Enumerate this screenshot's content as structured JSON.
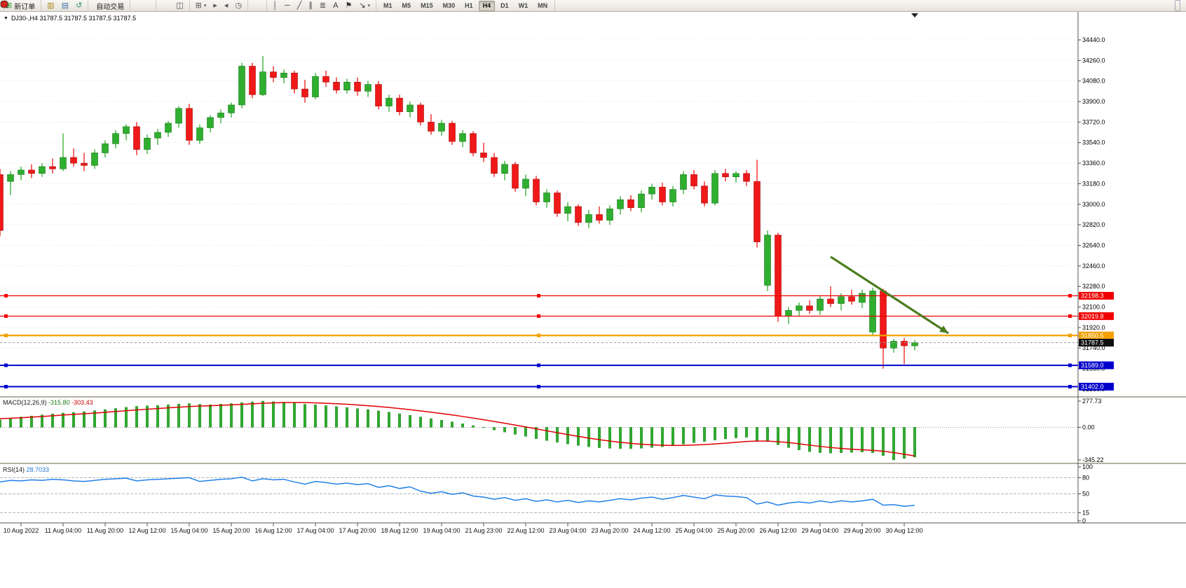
{
  "window": {
    "symbol_title": "DJ30-,H4 31787.5 31787.5 31787.5 31787.5",
    "dropdown_glyph": "▼"
  },
  "toolbar": {
    "groups": [
      {
        "name": "orders",
        "items": [
          {
            "name": "new-order-button",
            "glyph": "⊞",
            "color": "#2f9e2f",
            "label": "新订单"
          }
        ]
      },
      {
        "name": "panels",
        "items": [
          {
            "name": "market-watch-button",
            "glyph": "▥",
            "color": "#b08820"
          },
          {
            "name": "data-window-button",
            "glyph": "▤",
            "color": "#4878b0"
          },
          {
            "name": "navigator-button",
            "glyph": "↺",
            "color": "#2e8b57"
          }
        ]
      },
      {
        "name": "trading",
        "items": [
          {
            "name": "auto-trading-button",
            "shape": "reddot",
            "label": "自动交易"
          }
        ]
      },
      {
        "name": "chart-type",
        "items": [
          {
            "name": "bar-chart-button",
            "shape": "bars"
          },
          {
            "name": "candlestick-chart-button",
            "shape": "candle"
          },
          {
            "name": "line-chart-button",
            "shape": "linechart"
          }
        ]
      },
      {
        "name": "zoom",
        "items": [
          {
            "name": "zoom-in-button",
            "shape": "zoomin"
          },
          {
            "name": "zoom-out-button",
            "shape": "zoomout"
          },
          {
            "name": "tile-windows-button",
            "glyph": "◫",
            "color": "#555555"
          }
        ]
      },
      {
        "name": "windows",
        "items": [
          {
            "name": "new-chart-button",
            "glyph": "⊞",
            "color": "#555555",
            "caret": "▾"
          },
          {
            "name": "auto-scroll-button",
            "glyph": "▸",
            "color": "#555555"
          },
          {
            "name": "chart-shift-button",
            "glyph": "◂",
            "color": "#555555"
          },
          {
            "name": "clock-button",
            "glyph": "◷",
            "color": "#555555"
          }
        ]
      },
      {
        "name": "pointer",
        "items": [
          {
            "name": "cursor-button",
            "shape": "cursor"
          },
          {
            "name": "crosshair-button",
            "shape": "cross"
          }
        ]
      },
      {
        "name": "objects",
        "items": [
          {
            "name": "vertical-line-button",
            "glyph": "│",
            "color": "#444444"
          },
          {
            "name": "horizontal-line-button",
            "glyph": "─",
            "color": "#444444"
          },
          {
            "name": "trendline-button",
            "glyph": "╱",
            "color": "#444444"
          },
          {
            "name": "channel-button",
            "glyph": "∥",
            "color": "#444444"
          },
          {
            "name": "fibonacci-button",
            "glyph": "≣",
            "color": "#444444"
          },
          {
            "name": "text-button",
            "glyph": "A",
            "color": "#333333"
          },
          {
            "name": "label-button",
            "glyph": "⚑",
            "color": "#333333"
          },
          {
            "name": "arrows-button",
            "glyph": "↘",
            "color": "#333333",
            "caret": "▾"
          }
        ]
      }
    ],
    "timeframes": [
      "M1",
      "M5",
      "M15",
      "M30",
      "H1",
      "H4",
      "D1",
      "W1",
      "MN"
    ],
    "active_timeframe": "H4",
    "right_items": [
      {
        "name": "wrench-button",
        "shape": "gear"
      },
      {
        "name": "notifications-button",
        "shape": "reddot"
      }
    ]
  },
  "chart_data": {
    "type": "candlestick",
    "symbol": "DJ30-",
    "period": "H4",
    "title": "DJ30-,H4 31787.5 31787.5 31787.5 31787.5",
    "colors": {
      "up": "#2fae2f",
      "down": "#f01818",
      "macd_histogram": "#2fae2f",
      "macd_signal": "#e00000",
      "rsi": "#2080e8",
      "grid": "#dcdcdc",
      "arrow": "#4a7d1e",
      "current_price_bg": "#101010"
    },
    "price_axis": {
      "max": 34440.0,
      "min": 31380.0,
      "step": 180.0
    },
    "price_ticks": [
      "34440.0",
      "34260.0",
      "34080.0",
      "33900.0",
      "33720.0",
      "33540.0",
      "33360.0",
      "33180.0",
      "33000.0",
      "32820.0",
      "32640.0",
      "32460.0",
      "32280.0",
      "32100.0",
      "31920.0",
      "31740.0",
      "31560.0",
      "31380.0"
    ],
    "time_labels": [
      "10 Aug 2022",
      "11 Aug 04:00",
      "11 Aug 20:00",
      "12 Aug 12:00",
      "15 Aug 04:00",
      "15 Aug 20:00",
      "16 Aug 12:00",
      "17 Aug 04:00",
      "17 Aug 20:00",
      "18 Aug 12:00",
      "19 Aug 04:00",
      "21 Aug 23:00",
      "22 Aug 12:00",
      "23 Aug 04:00",
      "23 Aug 20:00",
      "24 Aug 12:00",
      "25 Aug 04:00",
      "25 Aug 20:00",
      "26 Aug 12:00",
      "29 Aug 04:00",
      "29 Aug 20:00",
      "30 Aug 12:00"
    ],
    "label_start_index": 2,
    "label_step": 4,
    "candles": [
      [
        33260,
        33310,
        32720,
        32770
      ],
      [
        33200,
        33290,
        33080,
        33260
      ],
      [
        33260,
        33330,
        33210,
        33300
      ],
      [
        33300,
        33350,
        33230,
        33270
      ],
      [
        33270,
        33360,
        33240,
        33330
      ],
      [
        33330,
        33400,
        33270,
        33310
      ],
      [
        33310,
        33620,
        33290,
        33410
      ],
      [
        33410,
        33490,
        33330,
        33360
      ],
      [
        33360,
        33450,
        33290,
        33340
      ],
      [
        33340,
        33480,
        33310,
        33450
      ],
      [
        33450,
        33560,
        33410,
        33530
      ],
      [
        33530,
        33650,
        33490,
        33620
      ],
      [
        33620,
        33700,
        33560,
        33680
      ],
      [
        33680,
        33720,
        33430,
        33480
      ],
      [
        33480,
        33610,
        33440,
        33580
      ],
      [
        33580,
        33660,
        33520,
        33630
      ],
      [
        33630,
        33730,
        33590,
        33710
      ],
      [
        33710,
        33860,
        33670,
        33840
      ],
      [
        33840,
        33880,
        33520,
        33560
      ],
      [
        33560,
        33700,
        33530,
        33670
      ],
      [
        33670,
        33780,
        33630,
        33760
      ],
      [
        33760,
        33830,
        33710,
        33800
      ],
      [
        33800,
        33890,
        33760,
        33870
      ],
      [
        33870,
        34240,
        33840,
        34210
      ],
      [
        34210,
        34240,
        33930,
        33960
      ],
      [
        33960,
        34300,
        33950,
        34160
      ],
      [
        34160,
        34210,
        34070,
        34110
      ],
      [
        34110,
        34180,
        34060,
        34150
      ],
      [
        34150,
        34170,
        33970,
        34010
      ],
      [
        34010,
        34090,
        33890,
        33940
      ],
      [
        33940,
        34150,
        33920,
        34120
      ],
      [
        34120,
        34170,
        34030,
        34070
      ],
      [
        34070,
        34110,
        33970,
        34000
      ],
      [
        34000,
        34100,
        33970,
        34070
      ],
      [
        34070,
        34110,
        33950,
        33990
      ],
      [
        33990,
        34080,
        33940,
        34050
      ],
      [
        34050,
        34080,
        33830,
        33860
      ],
      [
        33860,
        33960,
        33810,
        33930
      ],
      [
        33930,
        33960,
        33780,
        33810
      ],
      [
        33810,
        33900,
        33760,
        33870
      ],
      [
        33870,
        33890,
        33690,
        33720
      ],
      [
        33720,
        33790,
        33610,
        33640
      ],
      [
        33640,
        33740,
        33600,
        33710
      ],
      [
        33710,
        33730,
        33520,
        33550
      ],
      [
        33550,
        33650,
        33500,
        33620
      ],
      [
        33620,
        33640,
        33420,
        33450
      ],
      [
        33450,
        33540,
        33370,
        33410
      ],
      [
        33410,
        33450,
        33240,
        33270
      ],
      [
        33270,
        33380,
        33210,
        33350
      ],
      [
        33350,
        33370,
        33110,
        33140
      ],
      [
        33140,
        33260,
        33070,
        33220
      ],
      [
        33220,
        33250,
        32990,
        33020
      ],
      [
        33020,
        33130,
        32970,
        33100
      ],
      [
        33100,
        33120,
        32890,
        32920
      ],
      [
        32920,
        33020,
        32850,
        32980
      ],
      [
        32980,
        33000,
        32810,
        32840
      ],
      [
        32840,
        32950,
        32790,
        32910
      ],
      [
        32910,
        32980,
        32830,
        32860
      ],
      [
        32860,
        32990,
        32820,
        32960
      ],
      [
        32960,
        33070,
        32910,
        33040
      ],
      [
        33040,
        33080,
        32940,
        32970
      ],
      [
        32970,
        33120,
        32930,
        33090
      ],
      [
        33090,
        33180,
        33040,
        33150
      ],
      [
        33150,
        33190,
        32990,
        33020
      ],
      [
        33020,
        33160,
        32980,
        33130
      ],
      [
        33130,
        33290,
        33090,
        33260
      ],
      [
        33260,
        33300,
        33130,
        33160
      ],
      [
        33160,
        33200,
        32980,
        33010
      ],
      [
        33010,
        33300,
        32990,
        33270
      ],
      [
        33270,
        33310,
        33200,
        33240
      ],
      [
        33240,
        33290,
        33190,
        33270
      ],
      [
        33270,
        33300,
        33160,
        33200
      ],
      [
        33200,
        33390,
        32620,
        32670
      ],
      [
        32290,
        32770,
        32240,
        32730
      ],
      [
        32730,
        32750,
        31970,
        32020
      ],
      [
        32020,
        32100,
        31950,
        32070
      ],
      [
        32070,
        32140,
        32020,
        32110
      ],
      [
        32110,
        32160,
        32040,
        32070
      ],
      [
        32070,
        32200,
        32030,
        32170
      ],
      [
        32170,
        32280,
        32100,
        32130
      ],
      [
        32130,
        32220,
        32070,
        32190
      ],
      [
        32190,
        32250,
        32120,
        32150
      ],
      [
        32140,
        32250,
        32090,
        32220
      ],
      [
        31880,
        32270,
        31850,
        32240
      ],
      [
        32240,
        32260,
        31560,
        31740
      ],
      [
        31740,
        31820,
        31700,
        31800
      ],
      [
        31800,
        31830,
        31600,
        31760
      ],
      [
        31760,
        31810,
        31720,
        31787.5
      ]
    ],
    "hlines": [
      {
        "price": 32198.3,
        "label": "32198.3",
        "color": "#f00000",
        "width": 1.3
      },
      {
        "price": 32019.8,
        "label": "32019.8",
        "color": "#f00000",
        "width": 1.3
      },
      {
        "price": 31850.5,
        "label": "31850.5",
        "color": "#f5a000",
        "width": 2.2
      },
      {
        "price": 31589.0,
        "label": "31589.0",
        "color": "#0000cc",
        "width": 2.0
      },
      {
        "price": 31402.0,
        "label": "31402.0",
        "color": "#0000cc",
        "width": 2.0
      }
    ],
    "current_price": {
      "value": 31787.5,
      "label": "31787.5"
    },
    "arrow": {
      "from_index": 79,
      "from_price": 32540,
      "to_index": 90.2,
      "to_price": 31870
    },
    "macd": {
      "label": "MACD(12,26,9)",
      "main_text": "-315.80",
      "signal_text": "-303.43",
      "main_value": -315.8,
      "signal_value": -303.43,
      "axis_labels": [
        "277.73",
        "0.00",
        "-345.22"
      ],
      "axis_values": [
        277.73,
        0.0,
        -345.22
      ],
      "histogram": [
        80,
        95,
        110,
        120,
        132,
        142,
        152,
        158,
        166,
        176,
        188,
        200,
        212,
        222,
        228,
        232,
        238,
        246,
        252,
        244,
        240,
        246,
        252,
        262,
        270,
        277.73,
        272,
        266,
        256,
        244,
        238,
        230,
        220,
        210,
        198,
        188,
        174,
        160,
        144,
        128,
        110,
        92,
        76,
        58,
        38,
        18,
        -4,
        -28,
        -50,
        -74,
        -96,
        -120,
        -140,
        -158,
        -176,
        -192,
        -206,
        -216,
        -222,
        -226,
        -226,
        -222,
        -214,
        -206,
        -194,
        -178,
        -162,
        -150,
        -134,
        -122,
        -112,
        -106,
        -140,
        -150,
        -185,
        -215,
        -240,
        -258,
        -268,
        -272,
        -270,
        -266,
        -262,
        -270,
        -300,
        -345.22,
        -330,
        -315.8
      ],
      "signal": [
        92,
        96,
        102,
        108,
        115,
        122,
        130,
        137,
        144,
        151,
        159,
        167,
        176,
        184,
        192,
        199,
        206,
        213,
        220,
        225,
        229,
        233,
        238,
        243,
        249,
        255,
        259,
        262,
        263,
        262,
        259,
        255,
        250,
        244,
        237,
        229,
        220,
        210,
        199,
        187,
        174,
        160,
        146,
        131,
        115,
        98,
        80,
        62,
        43,
        24,
        4,
        -16,
        -37,
        -57,
        -77,
        -96,
        -114,
        -131,
        -146,
        -159,
        -170,
        -179,
        -186,
        -190,
        -192,
        -191,
        -188,
        -183,
        -176,
        -168,
        -159,
        -150,
        -146,
        -146,
        -152,
        -162,
        -175,
        -189,
        -202,
        -214,
        -224,
        -232,
        -238,
        -244,
        -253,
        -268,
        -285,
        -303.43
      ]
    },
    "rsi": {
      "label": "RSI(14)",
      "value_text": "28.7033",
      "value": 28.7033,
      "levels": [
        80,
        50,
        15
      ],
      "axis_labels": [
        "100",
        "80",
        "50",
        "15",
        "0"
      ],
      "axis_values": [
        100,
        80,
        50,
        15,
        0
      ],
      "series": [
        72,
        75,
        74,
        76,
        75,
        77,
        76,
        74,
        73,
        75,
        77,
        78,
        79,
        74,
        76,
        77,
        78,
        79,
        80,
        73,
        75,
        77,
        78,
        81,
        74,
        78,
        76,
        77,
        72,
        68,
        73,
        71,
        68,
        70,
        67,
        69,
        62,
        65,
        60,
        63,
        55,
        51,
        54,
        49,
        52,
        46,
        44,
        40,
        43,
        38,
        41,
        36,
        39,
        35,
        38,
        34,
        37,
        35,
        38,
        41,
        39,
        42,
        44,
        40,
        43,
        47,
        44,
        41,
        48,
        46,
        45,
        43,
        31,
        35,
        29,
        33,
        35,
        33,
        37,
        34,
        37,
        35,
        37,
        40,
        29,
        30,
        27,
        28.7
      ]
    }
  }
}
